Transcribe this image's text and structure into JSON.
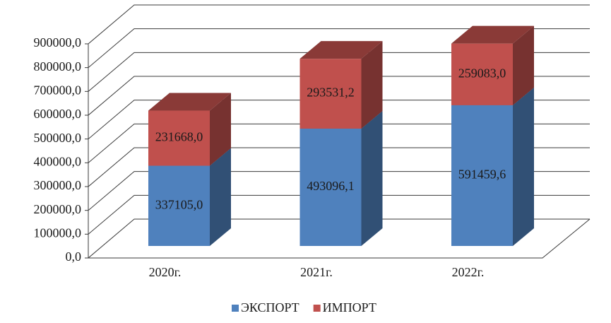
{
  "chart_data": {
    "type": "bar3d_stacked",
    "categories": [
      "2020г.",
      "2021г.",
      "2022г."
    ],
    "series": [
      {
        "name": "ЭКСПОРТ",
        "color": "#4f81bd",
        "values": [
          337105.0,
          493096.1,
          591459.6
        ],
        "value_labels": [
          "337105,0",
          "493096,1",
          "591459,6"
        ]
      },
      {
        "name": "ИМПОРТ",
        "color": "#c0504d",
        "values": [
          231668.0,
          293531.2,
          259083.0
        ],
        "value_labels": [
          "231668,0",
          "293531,2",
          "259083,0"
        ]
      }
    ],
    "ylim": [
      0,
      900000
    ],
    "yticks": [
      {
        "value": 0,
        "label": "0,0"
      },
      {
        "value": 100000,
        "label": "100000,0"
      },
      {
        "value": 200000,
        "label": "200000,0"
      },
      {
        "value": 300000,
        "label": "300000,0"
      },
      {
        "value": 400000,
        "label": "400000,0"
      },
      {
        "value": 500000,
        "label": "500000,0"
      },
      {
        "value": 600000,
        "label": "600000,0"
      },
      {
        "value": 700000,
        "label": "700000,0"
      },
      {
        "value": 800000,
        "label": "800000,0"
      },
      {
        "value": 900000,
        "label": "900000,0"
      }
    ],
    "grid": true,
    "legend": "bottom"
  }
}
